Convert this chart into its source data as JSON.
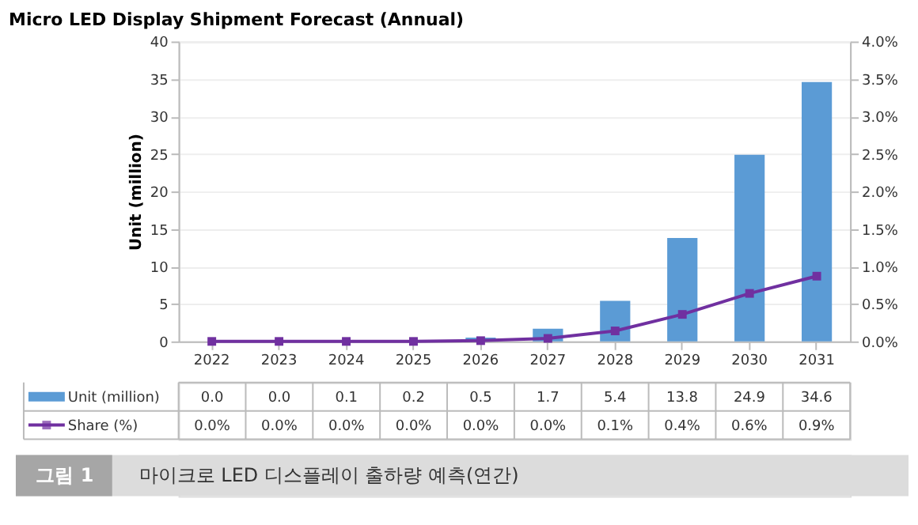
{
  "chart_data": {
    "type": "bar",
    "title": "Micro LED Display Shipment Forecast (Annual)",
    "ylabel": "Unit (million)",
    "categories": [
      "2022",
      "2023",
      "2024",
      "2025",
      "2026",
      "2027",
      "2028",
      "2029",
      "2030",
      "2031"
    ],
    "series": [
      {
        "name": "Unit (million)",
        "color": "#5b9bd5",
        "values": [
          0.0,
          0.0,
          0.1,
          0.2,
          0.5,
          1.7,
          5.4,
          13.8,
          24.9,
          34.6
        ],
        "value_labels": [
          "0.0",
          "0.0",
          "0.1",
          "0.2",
          "0.5",
          "1.7",
          "5.4",
          "13.8",
          "24.9",
          "34.6"
        ]
      },
      {
        "name": "Share (%)",
        "type": "line",
        "axis": "y2",
        "color": "#7030a0",
        "values": [
          0,
          0,
          0,
          0,
          0.01,
          0.04,
          0.14,
          0.36,
          0.64,
          0.87
        ],
        "value_labels": [
          "0.0%",
          "0.0%",
          "0.0%",
          "0.0%",
          "0.0%",
          "0.0%",
          "0.1%",
          "0.4%",
          "0.6%",
          "0.9%"
        ]
      }
    ],
    "ylim": [
      0,
      40
    ],
    "yticks": [
      0,
      5,
      10,
      15,
      20,
      25,
      30,
      35,
      40
    ],
    "y2lim": [
      0,
      4
    ],
    "y2ticks": [
      {
        "value": 0,
        "label": "0.0%"
      },
      {
        "value": 0.5,
        "label": "0.5%"
      },
      {
        "value": 1,
        "label": "1.0%"
      },
      {
        "value": 1.5,
        "label": "1.5%"
      },
      {
        "value": 2,
        "label": "2.0%"
      },
      {
        "value": 2.5,
        "label": "2.5%"
      },
      {
        "value": 3,
        "label": "3.0%"
      },
      {
        "value": 3.5,
        "label": "3.5%"
      },
      {
        "value": 4,
        "label": "4.0%"
      }
    ],
    "grid": "y",
    "legend": "bottom",
    "marker": "square",
    "annotations": [
      "그림 1",
      "마이크로 LED 디스플레이 출하량 예측(연간)"
    ]
  }
}
